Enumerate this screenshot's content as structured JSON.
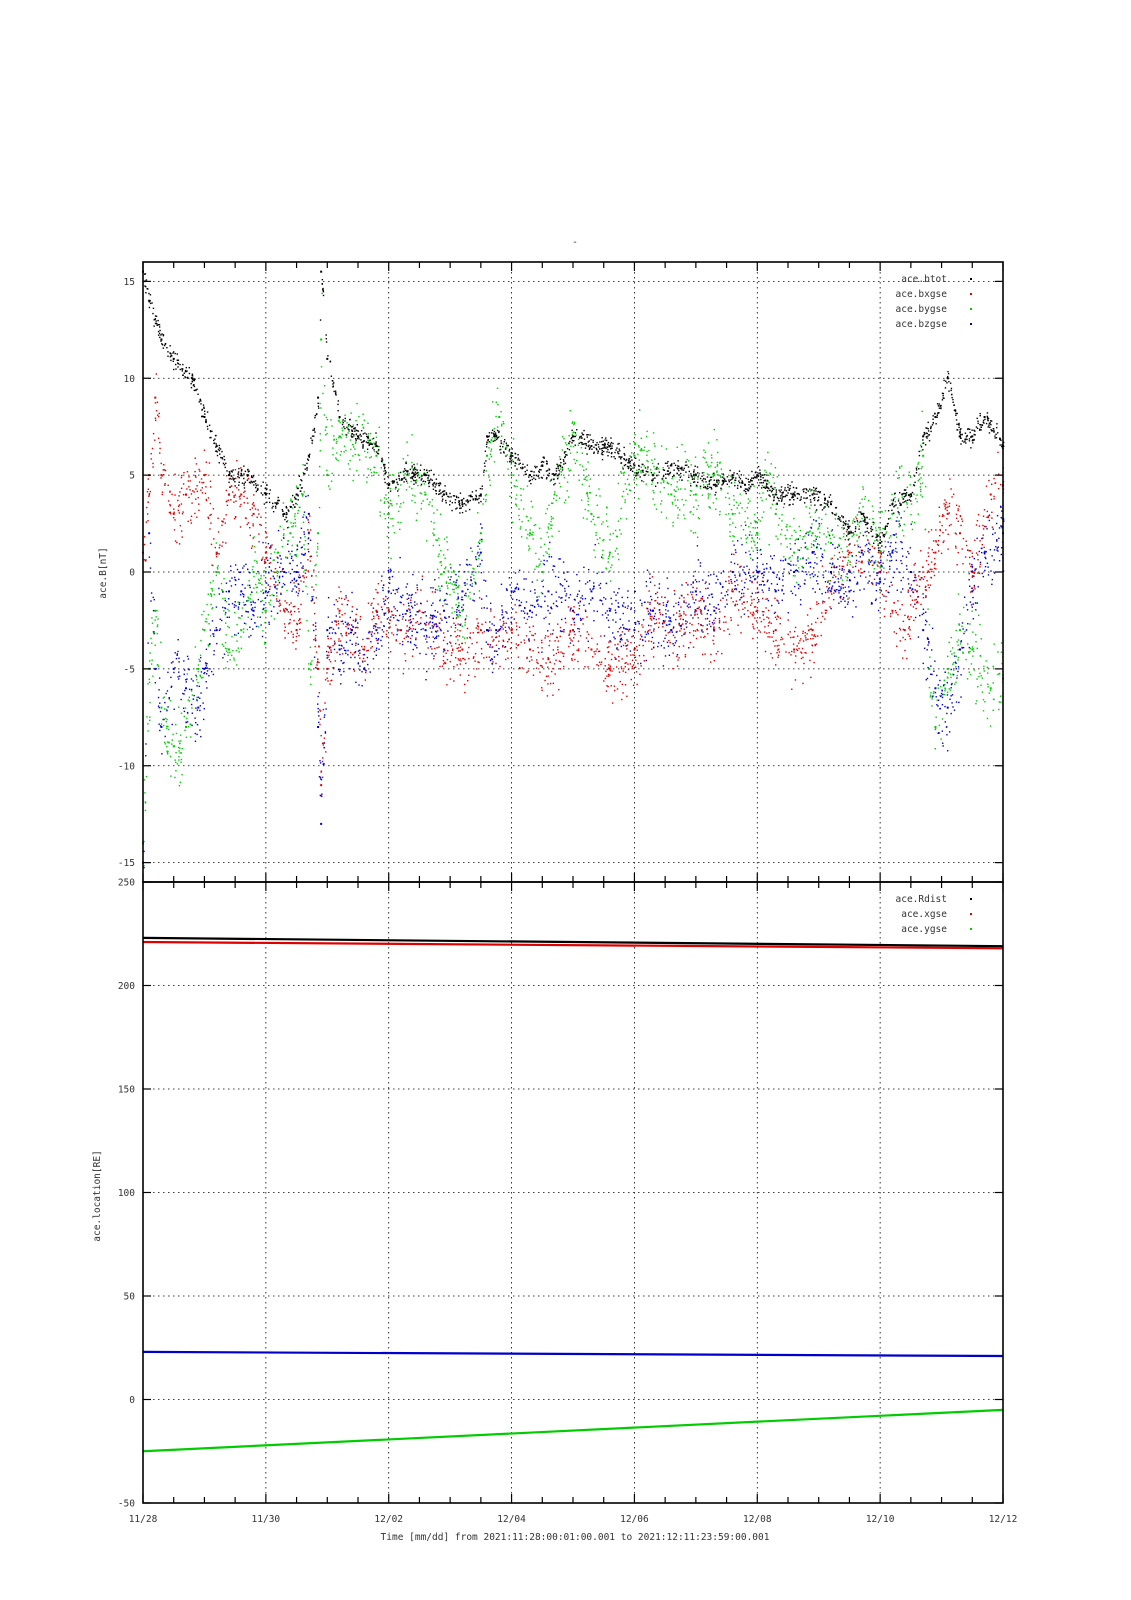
{
  "title_mark": "-",
  "x_axis": {
    "xlabel": "Time [mm/dd]  from 2021:11:28:00:01:00.001  to  2021:12:11:23:59:00.001",
    "ticks": [
      {
        "day": 0,
        "label": "11/28"
      },
      {
        "day": 2,
        "label": "11/30"
      },
      {
        "day": 4,
        "label": "12/02"
      },
      {
        "day": 6,
        "label": "12/04"
      },
      {
        "day": 8,
        "label": "12/06"
      },
      {
        "day": 10,
        "label": "12/08"
      },
      {
        "day": 12,
        "label": "12/10"
      },
      {
        "day": 14,
        "label": "12/12"
      }
    ]
  },
  "chart_data": [
    {
      "type": "scatter",
      "panel": "top",
      "ylabel": "ace.B[nT]",
      "ylim": [
        -16,
        16
      ],
      "yticks": [
        -15,
        -10,
        -5,
        0,
        5,
        10,
        15
      ],
      "xlim_days": [
        0,
        14
      ],
      "grid": true,
      "legend_position": "top-right",
      "series": [
        {
          "name": "ace.btot",
          "color": "#000000",
          "points": [
            [
              0,
              15.5
            ],
            [
              0.1,
              14
            ],
            [
              0.3,
              12
            ],
            [
              0.5,
              11
            ],
            [
              0.8,
              10
            ],
            [
              1.0,
              8
            ],
            [
              1.2,
              6.5
            ],
            [
              1.4,
              5
            ],
            [
              1.7,
              5
            ],
            [
              2.0,
              4
            ],
            [
              2.3,
              3
            ],
            [
              2.5,
              4
            ],
            [
              2.7,
              6
            ],
            [
              2.85,
              9
            ],
            [
              2.9,
              15.5
            ],
            [
              3.0,
              11
            ],
            [
              3.2,
              8
            ],
            [
              3.5,
              7
            ],
            [
              3.8,
              6.5
            ],
            [
              4.0,
              4.5
            ],
            [
              4.3,
              5.2
            ],
            [
              4.6,
              5
            ],
            [
              4.9,
              4
            ],
            [
              5.2,
              3.5
            ],
            [
              5.5,
              4
            ],
            [
              5.6,
              7
            ],
            [
              5.75,
              7
            ],
            [
              6.0,
              6
            ],
            [
              6.3,
              5
            ],
            [
              6.5,
              5.5
            ],
            [
              6.7,
              5
            ],
            [
              7.0,
              7
            ],
            [
              7.3,
              6.5
            ],
            [
              7.6,
              6.5
            ],
            [
              8.0,
              5.5
            ],
            [
              8.3,
              5
            ],
            [
              8.6,
              5.5
            ],
            [
              9.0,
              5
            ],
            [
              9.3,
              4.5
            ],
            [
              9.6,
              5
            ],
            [
              9.8,
              4.5
            ],
            [
              10.0,
              5
            ],
            [
              10.3,
              4
            ],
            [
              10.6,
              4
            ],
            [
              10.9,
              4
            ],
            [
              11.2,
              3.5
            ],
            [
              11.5,
              2
            ],
            [
              11.7,
              3
            ],
            [
              12.0,
              1.5
            ],
            [
              12.2,
              3.5
            ],
            [
              12.5,
              4
            ],
            [
              12.7,
              7
            ],
            [
              12.9,
              8
            ],
            [
              13.1,
              10
            ],
            [
              13.3,
              7
            ],
            [
              13.5,
              7
            ],
            [
              13.7,
              8
            ],
            [
              14.0,
              6.5
            ]
          ]
        },
        {
          "name": "ace.bxgse",
          "color": "#dd0000",
          "points": [
            [
              0,
              1
            ],
            [
              0.1,
              5
            ],
            [
              0.2,
              9
            ],
            [
              0.3,
              5
            ],
            [
              0.5,
              3
            ],
            [
              0.7,
              4
            ],
            [
              1.0,
              5
            ],
            [
              1.2,
              1
            ],
            [
              1.4,
              4
            ],
            [
              1.6,
              4
            ],
            [
              1.8,
              3
            ],
            [
              2.0,
              1
            ],
            [
              2.3,
              -2
            ],
            [
              2.5,
              -3
            ],
            [
              2.7,
              2
            ],
            [
              2.85,
              -5
            ],
            [
              2.9,
              -11
            ],
            [
              3.0,
              -5
            ],
            [
              3.2,
              -2
            ],
            [
              3.4,
              -3
            ],
            [
              3.6,
              -4
            ],
            [
              3.8,
              -2
            ],
            [
              4.0,
              -2
            ],
            [
              4.2,
              -3
            ],
            [
              4.5,
              -2
            ],
            [
              4.9,
              -4
            ],
            [
              5.2,
              -4
            ],
            [
              5.5,
              -3
            ],
            [
              5.8,
              -3
            ],
            [
              6.0,
              -3
            ],
            [
              6.3,
              -4
            ],
            [
              6.6,
              -4.5
            ],
            [
              7.0,
              -3
            ],
            [
              7.3,
              -4
            ],
            [
              7.6,
              -5
            ],
            [
              8.0,
              -4
            ],
            [
              8.3,
              -2
            ],
            [
              8.6,
              -3
            ],
            [
              9.0,
              -2
            ],
            [
              9.3,
              -3
            ],
            [
              9.6,
              -1
            ],
            [
              10.0,
              -2
            ],
            [
              10.3,
              -3
            ],
            [
              10.6,
              -4
            ],
            [
              10.9,
              -3
            ],
            [
              11.2,
              -1
            ],
            [
              11.5,
              1
            ],
            [
              11.7,
              0.5
            ],
            [
              12.0,
              0
            ],
            [
              12.2,
              -2
            ],
            [
              12.4,
              -3
            ],
            [
              12.6,
              -1
            ],
            [
              12.9,
              1
            ],
            [
              13.1,
              3
            ],
            [
              13.3,
              2
            ],
            [
              13.5,
              0
            ],
            [
              13.8,
              4
            ],
            [
              14.0,
              4.5
            ]
          ]
        },
        {
          "name": "ace.bygse",
          "color": "#00cc00",
          "points": [
            [
              0,
              -14
            ],
            [
              0.1,
              -5
            ],
            [
              0.2,
              -2
            ],
            [
              0.3,
              -7
            ],
            [
              0.5,
              -9
            ],
            [
              0.7,
              -8
            ],
            [
              0.9,
              -5
            ],
            [
              1.0,
              -3
            ],
            [
              1.2,
              0
            ],
            [
              1.4,
              -4
            ],
            [
              1.6,
              -3
            ],
            [
              1.8,
              0
            ],
            [
              2.0,
              -2
            ],
            [
              2.2,
              1
            ],
            [
              2.4,
              2
            ],
            [
              2.6,
              4
            ],
            [
              2.7,
              -5
            ],
            [
              2.85,
              2
            ],
            [
              2.9,
              12
            ],
            [
              3.0,
              5
            ],
            [
              3.2,
              7
            ],
            [
              3.5,
              7
            ],
            [
              3.8,
              6
            ],
            [
              4.0,
              3
            ],
            [
              4.3,
              5
            ],
            [
              4.6,
              4
            ],
            [
              4.9,
              0
            ],
            [
              5.2,
              -2
            ],
            [
              5.5,
              2
            ],
            [
              5.6,
              6
            ],
            [
              5.8,
              8
            ],
            [
              6.0,
              5
            ],
            [
              6.3,
              2
            ],
            [
              6.5,
              0
            ],
            [
              6.7,
              4
            ],
            [
              7.0,
              7
            ],
            [
              7.3,
              3
            ],
            [
              7.6,
              1
            ],
            [
              8.0,
              6
            ],
            [
              8.3,
              5
            ],
            [
              8.6,
              4
            ],
            [
              9.0,
              4
            ],
            [
              9.3,
              5
            ],
            [
              9.6,
              3
            ],
            [
              10.0,
              2
            ],
            [
              10.1,
              5
            ],
            [
              10.3,
              3
            ],
            [
              10.6,
              1
            ],
            [
              10.9,
              2
            ],
            [
              11.2,
              1.5
            ],
            [
              11.5,
              1
            ],
            [
              11.7,
              3
            ],
            [
              12.0,
              1
            ],
            [
              12.2,
              3
            ],
            [
              12.5,
              4
            ],
            [
              12.7,
              6
            ],
            [
              12.8,
              -5
            ],
            [
              12.9,
              -8
            ],
            [
              13.1,
              -5
            ],
            [
              13.3,
              -3
            ],
            [
              13.5,
              -4
            ],
            [
              13.8,
              -6
            ],
            [
              14.0,
              -5.5
            ]
          ]
        },
        {
          "name": "ace.bzgse",
          "color": "#0000cc",
          "points": [
            [
              0,
              -15
            ],
            [
              0.1,
              2
            ],
            [
              0.2,
              -5
            ],
            [
              0.3,
              -8
            ],
            [
              0.5,
              -5
            ],
            [
              0.7,
              -6
            ],
            [
              0.9,
              -7
            ],
            [
              1.0,
              -5
            ],
            [
              1.2,
              -3
            ],
            [
              1.4,
              -1
            ],
            [
              1.6,
              -1
            ],
            [
              1.8,
              -2
            ],
            [
              2.0,
              -1
            ],
            [
              2.3,
              0
            ],
            [
              2.5,
              0
            ],
            [
              2.7,
              3
            ],
            [
              2.85,
              -8
            ],
            [
              2.9,
              -13
            ],
            [
              3.0,
              -3
            ],
            [
              3.2,
              -4
            ],
            [
              3.4,
              -3
            ],
            [
              3.6,
              -5
            ],
            [
              3.8,
              -3
            ],
            [
              4.0,
              -1
            ],
            [
              4.3,
              -2
            ],
            [
              4.6,
              -3
            ],
            [
              4.9,
              -2
            ],
            [
              5.2,
              -1
            ],
            [
              5.5,
              1
            ],
            [
              5.6,
              -3
            ],
            [
              5.75,
              -3
            ],
            [
              6.0,
              -1
            ],
            [
              6.3,
              -2
            ],
            [
              6.6,
              -1
            ],
            [
              7.0,
              -2
            ],
            [
              7.3,
              -1
            ],
            [
              7.6,
              -2
            ],
            [
              8.0,
              -3
            ],
            [
              8.3,
              -2
            ],
            [
              8.6,
              -3
            ],
            [
              9.0,
              -1
            ],
            [
              9.3,
              -2
            ],
            [
              9.6,
              0
            ],
            [
              10.0,
              0
            ],
            [
              10.3,
              -1
            ],
            [
              10.6,
              0
            ],
            [
              10.9,
              1
            ],
            [
              11.2,
              0
            ],
            [
              11.5,
              -1
            ],
            [
              11.7,
              1
            ],
            [
              12.0,
              -0.5
            ],
            [
              12.2,
              1
            ],
            [
              12.5,
              0
            ],
            [
              12.7,
              -3
            ],
            [
              12.9,
              -6
            ],
            [
              13.1,
              -7
            ],
            [
              13.3,
              -4
            ],
            [
              13.5,
              -1
            ],
            [
              13.7,
              1
            ],
            [
              14.0,
              2
            ]
          ]
        }
      ]
    },
    {
      "type": "line",
      "panel": "bottom",
      "ylabel": "ace.location[RE]",
      "ylim": [
        -50,
        250
      ],
      "yticks": [
        -50,
        0,
        50,
        100,
        150,
        200,
        250
      ],
      "xlim_days": [
        0,
        14
      ],
      "grid": true,
      "legend_position": "top-right",
      "series": [
        {
          "name": "ace.Rdist",
          "color": "#000000",
          "x": [
            0,
            14
          ],
          "values": [
            223,
            219
          ]
        },
        {
          "name": "ace.xgse",
          "color": "#dd0000",
          "x": [
            0,
            14
          ],
          "values": [
            221,
            218
          ]
        },
        {
          "name": "ace.ygse",
          "color": "#00cc00",
          "x": [
            0,
            14
          ],
          "values": [
            -25,
            -5
          ]
        },
        {
          "name": "",
          "color": "#0000cc",
          "x": [
            0,
            14
          ],
          "values": [
            23,
            21
          ]
        }
      ]
    }
  ]
}
